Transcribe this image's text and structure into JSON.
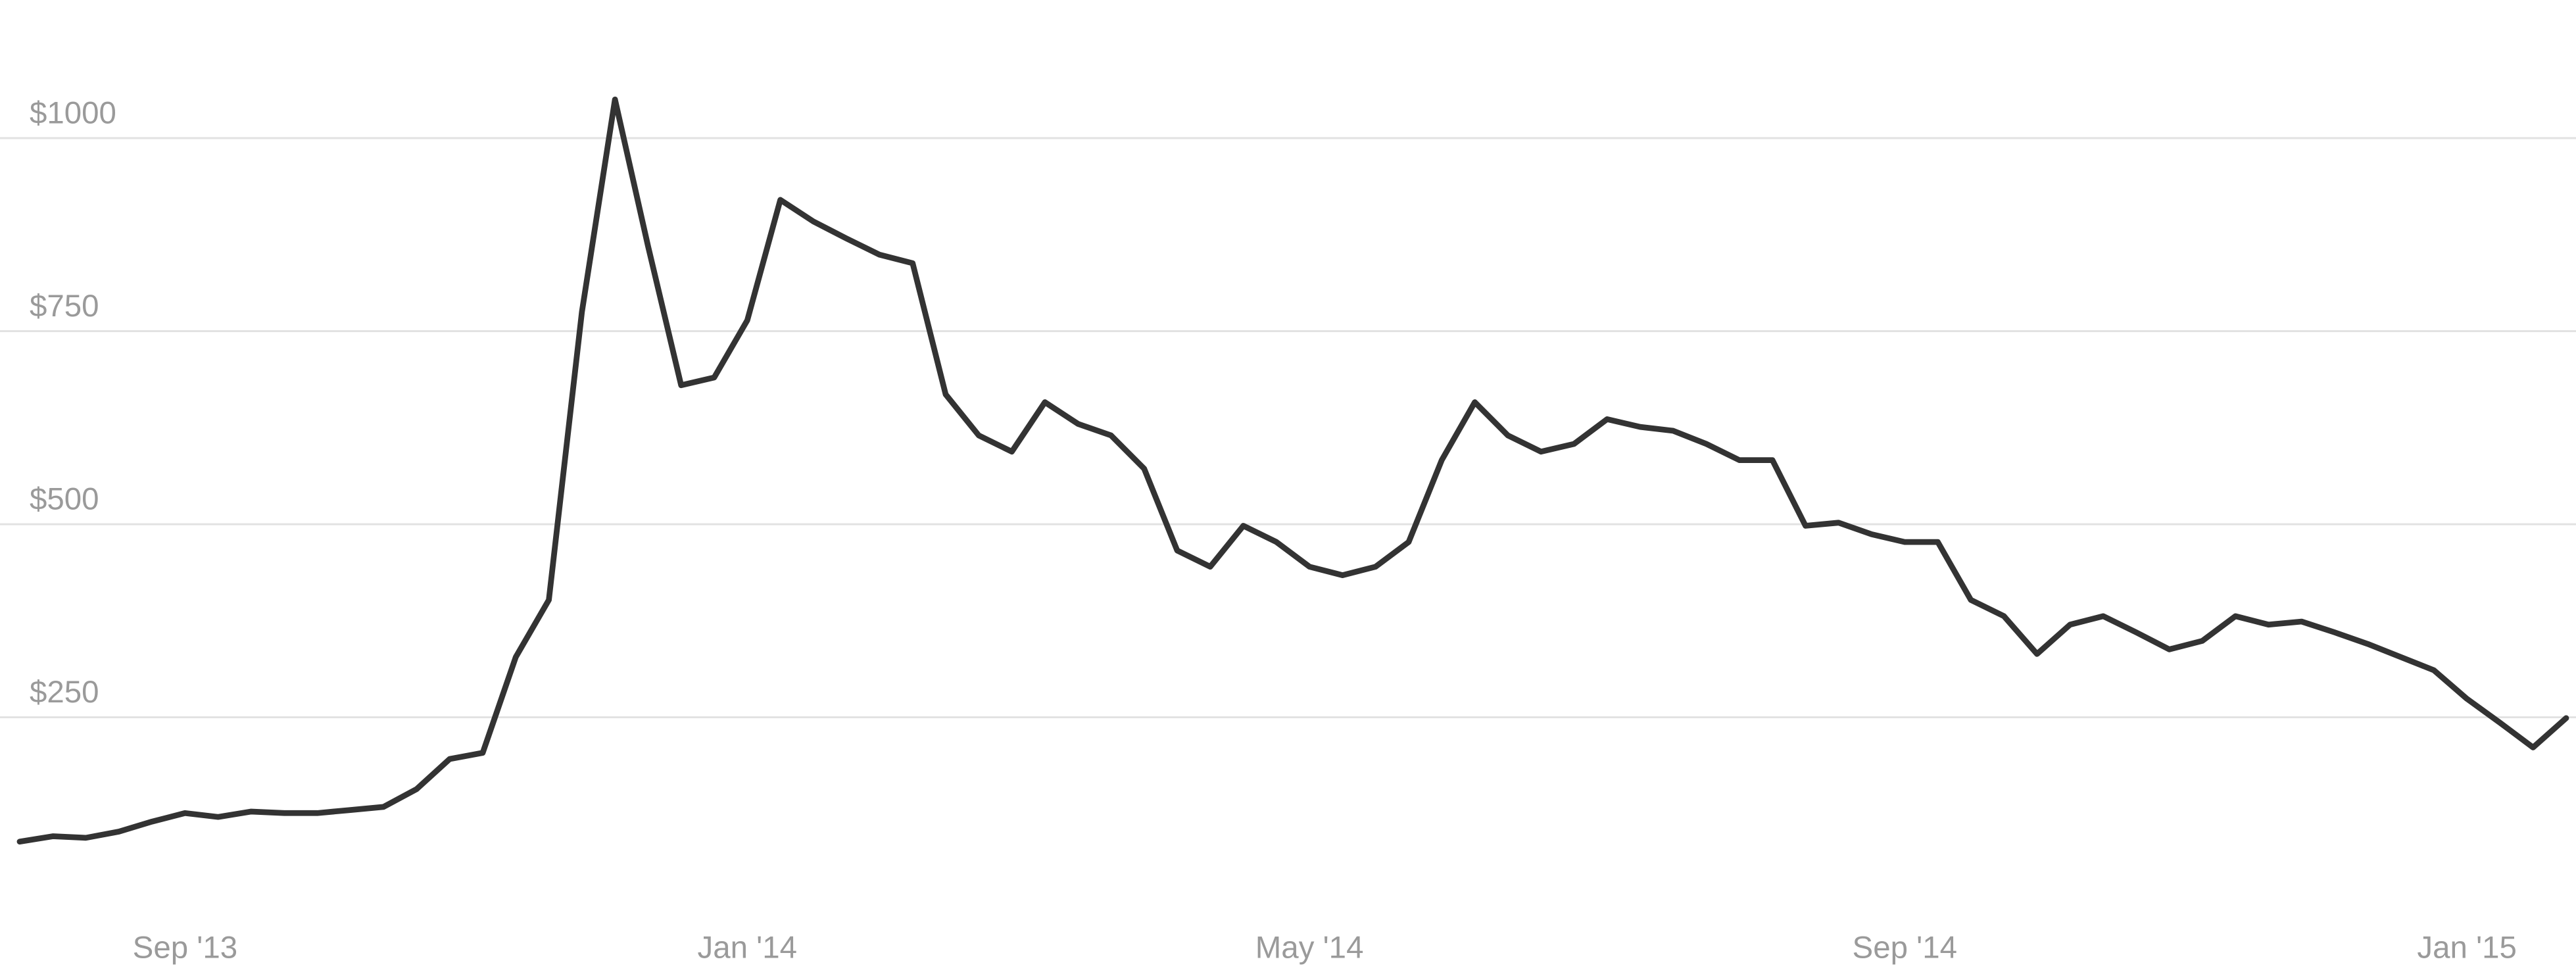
{
  "chart_data": {
    "type": "line",
    "categories": [
      null,
      null,
      null,
      null,
      null,
      "Sep '13",
      null,
      null,
      null,
      null,
      null,
      null,
      null,
      null,
      null,
      null,
      null,
      null,
      null,
      null,
      null,
      null,
      "Jan '14",
      null,
      null,
      null,
      null,
      null,
      null,
      null,
      null,
      null,
      null,
      null,
      null,
      null,
      null,
      null,
      null,
      "May '14",
      null,
      null,
      null,
      null,
      null,
      null,
      null,
      null,
      null,
      null,
      null,
      null,
      null,
      null,
      null,
      null,
      null,
      "Sep '14",
      null,
      null,
      null,
      null,
      null,
      null,
      null,
      null,
      null,
      null,
      null,
      null,
      null,
      null,
      null,
      null,
      "Jan '15",
      null,
      null,
      null
    ],
    "values": [
      89,
      96,
      94,
      102,
      115,
      126,
      121,
      128,
      126,
      126,
      130,
      134,
      157,
      196,
      204,
      328,
      402,
      775,
      1050,
      860,
      680,
      690,
      764,
      920,
      892,
      870,
      849,
      838,
      668,
      615,
      594,
      658,
      630,
      615,
      572,
      466,
      445,
      498,
      477,
      445,
      434,
      445,
      477,
      583,
      658,
      615,
      594,
      604,
      636,
      626,
      621,
      604,
      583,
      583,
      498,
      502,
      487,
      477,
      477,
      402,
      381,
      332,
      370,
      381,
      360,
      338,
      349,
      381,
      370,
      374,
      360,
      345,
      328,
      311,
      274,
      243,
      211,
      249
    ],
    "color": "#333333",
    "ylim": [
      30,
      1160
    ],
    "yticks": [
      {
        "value": 250,
        "label": "$250"
      },
      {
        "value": 500,
        "label": "$500"
      },
      {
        "value": 750,
        "label": "$750"
      },
      {
        "value": 1000,
        "label": "$1000"
      }
    ],
    "grid": true
  }
}
